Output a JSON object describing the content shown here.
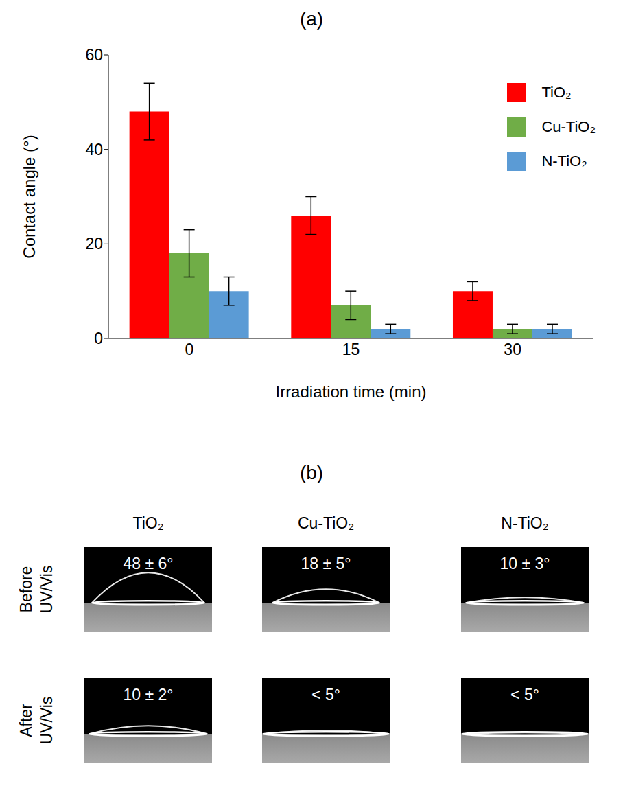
{
  "chart_data": {
    "type": "bar",
    "title": "(a)",
    "x_label": "Irradiation time (min)",
    "y_label": "Contact angle (°)",
    "categories": [
      "0",
      "15",
      "30"
    ],
    "series": [
      {
        "name": "TiO₂",
        "color": "#ff0000",
        "values": [
          48,
          26,
          10
        ],
        "errors": [
          6,
          4,
          2
        ]
      },
      {
        "name": "Cu-TiO₂",
        "color": "#70ad47",
        "values": [
          18,
          7,
          2
        ],
        "errors": [
          5,
          3,
          1
        ]
      },
      {
        "name": "N-TiO₂",
        "color": "#5b9bd5",
        "values": [
          10,
          2,
          2
        ],
        "errors": [
          3,
          1,
          1
        ]
      }
    ],
    "ylim": [
      0,
      60
    ],
    "yticks": [
      0,
      20,
      40,
      60
    ],
    "grid": false,
    "legend": "top-right"
  },
  "photo_panel": {
    "title": "(b)",
    "columns": [
      "TiO₂",
      "Cu-TiO₂",
      "N-TiO₂"
    ],
    "rows": [
      "Before UV/Vis",
      "After UV/Vis"
    ],
    "cells": [
      [
        "48 ± 6°",
        "18 ± 5°",
        "10 ± 3°"
      ],
      [
        "10 ± 2°",
        "< 5°",
        "< 5°"
      ]
    ]
  }
}
